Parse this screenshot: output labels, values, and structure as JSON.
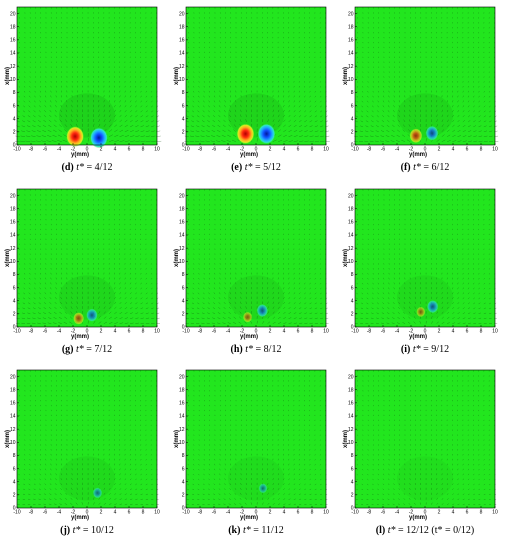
{
  "chart_data": [
    {
      "type": "heatmap",
      "panel": "d",
      "caption_label": "(d)",
      "caption_math": "t*",
      "caption_value": "= 4/12",
      "xlabel": "y(mm)",
      "ylabel": "x(mm)",
      "xlim": [
        -10,
        10
      ],
      "ylim": [
        0,
        21
      ],
      "x_ticks": [
        "-10",
        "-8",
        "-6",
        "-4",
        "-2",
        "0",
        "2",
        "4",
        "6",
        "8",
        "10"
      ],
      "y_ticks": [
        "0",
        "2",
        "4",
        "6",
        "8",
        "10",
        "12",
        "14",
        "16",
        "18",
        "20"
      ],
      "vortices": [
        {
          "y": -1.7,
          "x": 1.3,
          "sign": "positive",
          "strength": 1.0
        },
        {
          "y": 1.7,
          "x": 1.1,
          "sign": "negative",
          "strength": 1.0
        }
      ]
    },
    {
      "type": "heatmap",
      "panel": "e",
      "caption_label": "(e)",
      "caption_math": "t*",
      "caption_value": "= 5/12",
      "xlabel": "y(mm)",
      "ylabel": "x(mm)",
      "xlim": [
        -10,
        10
      ],
      "ylim": [
        0,
        21
      ],
      "x_ticks": [
        "-10",
        "-8",
        "-6",
        "-4",
        "-2",
        "0",
        "2",
        "4",
        "6",
        "8",
        "10"
      ],
      "y_ticks": [
        "0",
        "2",
        "4",
        "6",
        "8",
        "10",
        "12",
        "14",
        "16",
        "18",
        "20"
      ],
      "vortices": [
        {
          "y": -1.5,
          "x": 1.7,
          "sign": "positive",
          "strength": 1.0
        },
        {
          "y": 1.5,
          "x": 1.7,
          "sign": "negative",
          "strength": 1.0
        }
      ]
    },
    {
      "type": "heatmap",
      "panel": "f",
      "caption_label": "(f)",
      "caption_math": "t*",
      "caption_value": "= 6/12",
      "xlabel": "y(mm)",
      "ylabel": "x(mm)",
      "xlim": [
        -10,
        10
      ],
      "ylim": [
        0,
        21
      ],
      "x_ticks": [
        "-10",
        "-8",
        "-6",
        "-4",
        "-2",
        "0",
        "2",
        "4",
        "6",
        "8",
        "10"
      ],
      "y_ticks": [
        "0",
        "2",
        "4",
        "6",
        "8",
        "10",
        "12",
        "14",
        "16",
        "18",
        "20"
      ],
      "vortices": [
        {
          "y": -1.3,
          "x": 1.4,
          "sign": "positive",
          "strength": 0.5
        },
        {
          "y": 1.0,
          "x": 1.8,
          "sign": "negative",
          "strength": 0.5
        }
      ]
    },
    {
      "type": "heatmap",
      "panel": "g",
      "caption_label": "(g)",
      "caption_math": "t*",
      "caption_value": "= 7/12",
      "xlabel": "y(mm)",
      "ylabel": "x(mm)",
      "xlim": [
        -10,
        10
      ],
      "ylim": [
        0,
        21
      ],
      "x_ticks": [
        "-10",
        "-8",
        "-6",
        "-4",
        "-2",
        "0",
        "2",
        "4",
        "6",
        "8",
        "10"
      ],
      "y_ticks": [
        "0",
        "2",
        "4",
        "6",
        "8",
        "10",
        "12",
        "14",
        "16",
        "18",
        "20"
      ],
      "vortices": [
        {
          "y": -1.2,
          "x": 1.3,
          "sign": "positive",
          "strength": 0.3
        },
        {
          "y": 0.7,
          "x": 1.8,
          "sign": "negative",
          "strength": 0.35
        }
      ]
    },
    {
      "type": "heatmap",
      "panel": "h",
      "caption_label": "(h)",
      "caption_math": "t*",
      "caption_value": "= 8/12",
      "xlabel": "y(mm)",
      "ylabel": "x(mm)",
      "xlim": [
        -10,
        10
      ],
      "ylim": [
        0,
        21
      ],
      "x_ticks": [
        "-10",
        "-8",
        "-6",
        "-4",
        "-2",
        "0",
        "2",
        "4",
        "6",
        "8",
        "10"
      ],
      "y_ticks": [
        "0",
        "2",
        "4",
        "6",
        "8",
        "10",
        "12",
        "14",
        "16",
        "18",
        "20"
      ],
      "vortices": [
        {
          "y": -1.2,
          "x": 1.5,
          "sign": "positive",
          "strength": 0.15
        },
        {
          "y": 0.9,
          "x": 2.5,
          "sign": "negative",
          "strength": 0.35
        }
      ]
    },
    {
      "type": "heatmap",
      "panel": "i",
      "caption_label": "(i)",
      "caption_math": "t*",
      "caption_value": "= 9/12",
      "xlabel": "y(mm)",
      "ylabel": "x(mm)",
      "xlim": [
        -10,
        10
      ],
      "ylim": [
        0,
        21
      ],
      "x_ticks": [
        "-10",
        "-8",
        "-6",
        "-4",
        "-2",
        "0",
        "2",
        "4",
        "6",
        "8",
        "10"
      ],
      "y_ticks": [
        "0",
        "2",
        "4",
        "6",
        "8",
        "10",
        "12",
        "14",
        "16",
        "18",
        "20"
      ],
      "vortices": [
        {
          "y": -0.6,
          "x": 2.3,
          "sign": "positive",
          "strength": 0.12
        },
        {
          "y": 1.1,
          "x": 3.1,
          "sign": "negative",
          "strength": 0.35
        }
      ]
    },
    {
      "type": "heatmap",
      "panel": "j",
      "caption_label": "(j)",
      "caption_math": "t*",
      "caption_value": "= 10/12",
      "xlabel": "y(mm)",
      "ylabel": "x(mm)",
      "xlim": [
        -10,
        10
      ],
      "ylim": [
        0,
        21
      ],
      "x_ticks": [
        "-10",
        "-8",
        "-6",
        "-4",
        "-2",
        "0",
        "2",
        "4",
        "6",
        "8",
        "10"
      ],
      "y_ticks": [
        "0",
        "2",
        "4",
        "6",
        "8",
        "10",
        "12",
        "14",
        "16",
        "18",
        "20"
      ],
      "vortices": [
        {
          "y": 1.5,
          "x": 2.3,
          "sign": "negative",
          "strength": 0.15
        }
      ]
    },
    {
      "type": "heatmap",
      "panel": "k",
      "caption_label": "(k)",
      "caption_math": "t*",
      "caption_value": "= 11/12",
      "xlabel": "y(mm)",
      "ylabel": "x(mm)",
      "xlim": [
        -10,
        10
      ],
      "ylim": [
        0,
        21
      ],
      "x_ticks": [
        "-10",
        "-8",
        "-6",
        "-4",
        "-2",
        "0",
        "2",
        "4",
        "6",
        "8",
        "10"
      ],
      "y_ticks": [
        "0",
        "2",
        "4",
        "6",
        "8",
        "10",
        "12",
        "14",
        "16",
        "18",
        "20"
      ],
      "vortices": [
        {
          "y": 1.0,
          "x": 3.0,
          "sign": "negative",
          "strength": 0.08
        }
      ]
    },
    {
      "type": "heatmap",
      "panel": "l",
      "caption_label": "(l)",
      "caption_math": "t*",
      "caption_value": "= 12/12 (t* = 0/12)",
      "xlabel": "y(mm)",
      "ylabel": "x(mm)",
      "xlim": [
        -10,
        10
      ],
      "ylim": [
        0,
        21
      ],
      "x_ticks": [
        "-10",
        "-8",
        "-6",
        "-4",
        "-2",
        "0",
        "2",
        "4",
        "6",
        "8",
        "10"
      ],
      "y_ticks": [
        "0",
        "2",
        "4",
        "6",
        "8",
        "10",
        "12",
        "14",
        "16",
        "18",
        "20"
      ],
      "vortices": []
    }
  ],
  "colors": {
    "field": "#22e61e",
    "positive": "#e82010",
    "negative": "#1040e8",
    "vectors": "#0b4a0b"
  }
}
